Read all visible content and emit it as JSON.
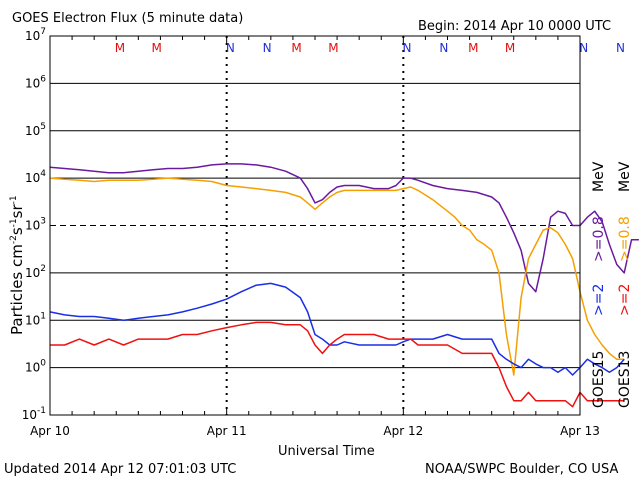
{
  "header": {
    "title": "GOES Electron Flux (5 minute data)",
    "begin": "Begin: 2014 Apr 10 0000 UTC"
  },
  "footer": {
    "updated": "Updated 2014 Apr 12 07:01:03 UTC",
    "credit": "NOAA/SWPC Boulder, CO USA"
  },
  "axes": {
    "ylabel": "Particles cm",
    "ylabel_exp1": "-2",
    "ylabel_mid": "s",
    "ylabel_exp2": "-1",
    "ylabel_tail": "sr",
    "ylabel_exp3": "-1",
    "xlabel": "Universal Time",
    "xticks": [
      "Apr 10",
      "Apr 11",
      "Apr 12",
      "Apr 13"
    ],
    "yticks": [
      {
        "base": "10",
        "exp": "7"
      },
      {
        "base": "10",
        "exp": "6"
      },
      {
        "base": "10",
        "exp": "5"
      },
      {
        "base": "10",
        "exp": "4"
      },
      {
        "base": "10",
        "exp": "3"
      },
      {
        "base": "10",
        "exp": "2"
      },
      {
        "base": "10",
        "exp": "1"
      },
      {
        "base": "10",
        "exp": "0"
      },
      {
        "base": "10",
        "exp": "-1"
      }
    ]
  },
  "legend": {
    "goes15": "GOES15",
    "goes13": "GOES13",
    "ge2_g15": ">=2",
    "ge2_g13": ">=2",
    "ge08_g15": ">=0.8",
    "ge08_g13": ">=0.8",
    "unit": "MeV"
  },
  "colors": {
    "goes15_08": "#6a1aa0",
    "goes13_08": "#f5a000",
    "goes15_2": "#1a2ee6",
    "goes13_2": "#f01010",
    "marker_M": "#e01010",
    "marker_N": "#2030d0",
    "grid": "#000000"
  },
  "chart_data": {
    "type": "line",
    "title": "GOES Electron Flux (5 minute data)",
    "xlabel": "Universal Time",
    "ylabel": "Particles cm-2 s-1 sr-1",
    "yscale": "log",
    "ylim": [
      0.1,
      10000000
    ],
    "xlim": [
      "2014-04-10 00:00",
      "2014-04-13 00:00"
    ],
    "x_unit": "hours since 2014 Apr 10 0000 UTC",
    "markers": [
      {
        "label": "M",
        "hour": 9.5
      },
      {
        "label": "M",
        "hour": 14.5
      },
      {
        "label": "N",
        "hour": 24.5
      },
      {
        "label": "N",
        "hour": 29.5
      },
      {
        "label": "M",
        "hour": 33.5
      },
      {
        "label": "M",
        "hour": 38.5
      },
      {
        "label": "N",
        "hour": 48.5
      },
      {
        "label": "N",
        "hour": 53.5
      },
      {
        "label": "M",
        "hour": 57.5
      },
      {
        "label": "M",
        "hour": 62.5
      },
      {
        "label": "N",
        "hour": 72.5
      },
      {
        "label": "N",
        "hour": 77.5
      }
    ],
    "series": [
      {
        "name": "GOES15 >=0.8 MeV",
        "color": "#6a1aa0",
        "x": [
          0,
          2,
          4,
          6,
          8,
          10,
          12,
          14,
          16,
          18,
          20,
          22,
          24,
          26,
          28,
          30,
          32,
          34,
          35,
          36,
          37,
          38,
          39,
          40,
          42,
          44,
          46,
          47,
          48,
          49,
          50,
          52,
          54,
          56,
          58,
          60,
          61,
          62,
          63,
          64,
          65,
          66,
          67,
          68,
          69,
          70,
          71,
          72,
          73,
          74,
          75,
          76,
          77,
          78,
          79,
          80
        ],
        "y": [
          17000,
          16000,
          15000,
          14000,
          13000,
          13000,
          14000,
          15000,
          16000,
          16000,
          17000,
          19000,
          20000,
          20000,
          19000,
          17000,
          14000,
          10000,
          6000,
          3000,
          3500,
          5000,
          6500,
          7000,
          7000,
          6000,
          6000,
          7000,
          10000,
          10000,
          9000,
          7000,
          6000,
          5500,
          5000,
          4000,
          3000,
          1500,
          700,
          300,
          60,
          40,
          200,
          1500,
          2000,
          1800,
          1000,
          1000,
          1500,
          2000,
          1200,
          400,
          150,
          100,
          500,
          500
        ]
      },
      {
        "name": "GOES13 >=0.8 MeV",
        "color": "#f5a000",
        "x": [
          0,
          2,
          4,
          6,
          8,
          10,
          12,
          14,
          16,
          18,
          20,
          22,
          24,
          26,
          28,
          30,
          32,
          34,
          35,
          36,
          37,
          38,
          39,
          40,
          42,
          44,
          46,
          47,
          48,
          49,
          50,
          52,
          54,
          55,
          56,
          57,
          58,
          59,
          60,
          61,
          62,
          63,
          64,
          65,
          66,
          67,
          68,
          69,
          70,
          71,
          72,
          73,
          74,
          75,
          76,
          77,
          78
        ],
        "y": [
          10000,
          9500,
          9000,
          8500,
          9000,
          9000,
          9000,
          9500,
          10000,
          9500,
          9000,
          8500,
          7000,
          6500,
          6000,
          5500,
          5000,
          4000,
          3000,
          2200,
          3000,
          4000,
          5000,
          5500,
          5500,
          5500,
          5500,
          5500,
          6000,
          6500,
          5500,
          3500,
          2000,
          1500,
          1000,
          800,
          500,
          400,
          300,
          100,
          5,
          0.7,
          30,
          200,
          400,
          800,
          900,
          700,
          400,
          200,
          40,
          10,
          5,
          3,
          2,
          1.5,
          1.5
        ]
      },
      {
        "name": "GOES15 >=2 MeV",
        "color": "#1a2ee6",
        "x": [
          0,
          2,
          4,
          6,
          8,
          10,
          12,
          14,
          16,
          18,
          20,
          22,
          24,
          26,
          28,
          30,
          32,
          34,
          35,
          36,
          37,
          38,
          39,
          40,
          42,
          44,
          46,
          47,
          48,
          49,
          50,
          52,
          54,
          56,
          58,
          60,
          61,
          62,
          63,
          64,
          65,
          66,
          67,
          68,
          69,
          70,
          71,
          72,
          73,
          74,
          75,
          76,
          77,
          78
        ],
        "y": [
          15,
          13,
          12,
          12,
          11,
          10,
          11,
          12,
          13,
          15,
          18,
          22,
          28,
          40,
          55,
          60,
          50,
          30,
          15,
          5,
          4,
          3,
          3,
          3.5,
          3,
          3,
          3,
          3,
          3.5,
          4,
          4,
          4,
          5,
          4,
          4,
          4,
          2,
          1.5,
          1.2,
          1,
          1.5,
          1.2,
          1,
          1,
          0.8,
          1,
          0.7,
          1,
          1.5,
          1.2,
          1,
          0.8,
          1,
          1.5
        ]
      },
      {
        "name": "GOES13 >=2 MeV",
        "color": "#f01010",
        "x": [
          0,
          2,
          4,
          6,
          8,
          10,
          12,
          14,
          16,
          18,
          20,
          22,
          24,
          26,
          28,
          30,
          32,
          34,
          35,
          36,
          37,
          38,
          39,
          40,
          42,
          44,
          46,
          47,
          48,
          49,
          50,
          52,
          54,
          56,
          58,
          60,
          61,
          62,
          63,
          64,
          65,
          66,
          67,
          68,
          69,
          70,
          71,
          72,
          73,
          74,
          75,
          76,
          77,
          78
        ],
        "y": [
          3,
          3,
          4,
          3,
          4,
          3,
          4,
          4,
          4,
          5,
          5,
          6,
          7,
          8,
          9,
          9,
          8,
          8,
          6,
          3,
          2,
          3,
          4,
          5,
          5,
          5,
          4,
          4,
          4,
          4,
          3,
          3,
          3,
          2,
          2,
          2,
          1,
          0.4,
          0.2,
          0.2,
          0.3,
          0.2,
          0.2,
          0.2,
          0.2,
          0.2,
          0.15,
          0.3,
          0.2,
          0.2,
          0.2,
          0.2,
          0.2,
          0.2
        ]
      }
    ]
  }
}
